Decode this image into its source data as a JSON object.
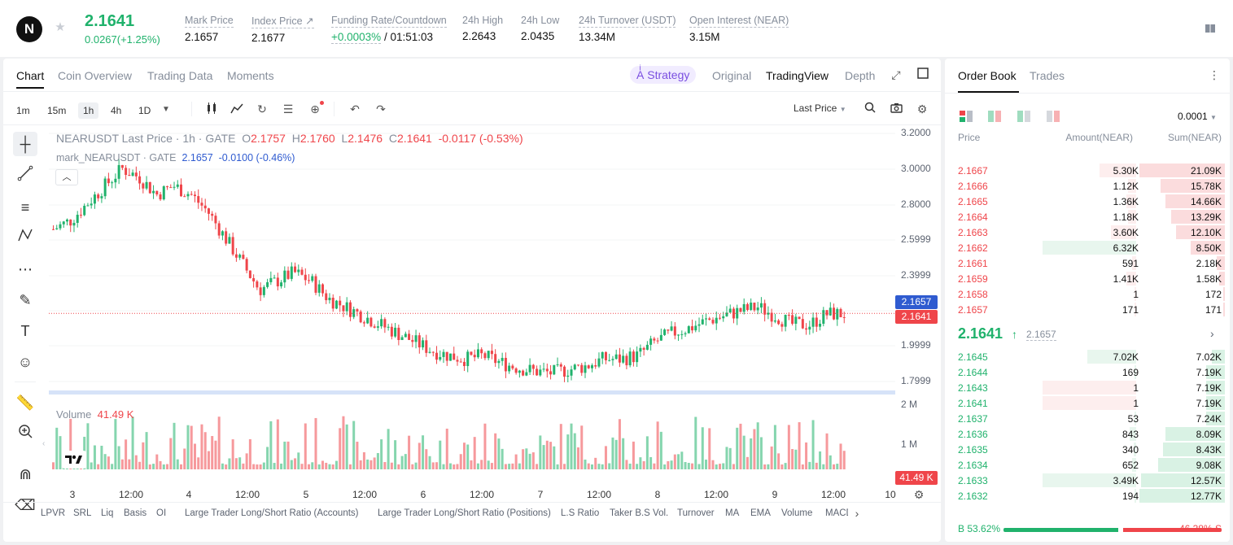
{
  "header": {
    "last_price": "2.1641",
    "change": "0.0267(+1.25%)",
    "mark_label": "Mark Price",
    "mark_value": "2.1657",
    "index_label": "Index Price",
    "index_value": "2.1677",
    "funding_label": "Funding Rate/Countdown",
    "funding_rate": "+0.0003%",
    "funding_countdown": "/ 01:51:03",
    "high_label": "24h High",
    "high_value": "2.2643",
    "low_label": "24h Low",
    "low_value": "2.0435",
    "turnover_label": "24h Turnover (USDT)",
    "turnover_value": "13.34M",
    "oi_label": "Open Interest (NEAR)",
    "oi_value": "3.15M"
  },
  "chart_tabs": [
    "Chart",
    "Coin Overview",
    "Trading Data",
    "Moments"
  ],
  "view_tabs": {
    "strategy": "Strategy",
    "original": "Original",
    "tradingview": "TradingView",
    "depth": "Depth"
  },
  "timeframes": [
    "1m",
    "15m",
    "1h",
    "4h",
    "1D"
  ],
  "price_type": "Last Price",
  "legend": {
    "title": "NEARUSDT Last Price · 1h · GATE",
    "o_label": "O",
    "o": "2.1757",
    "h_label": "H",
    "h": "2.1760",
    "l_label": "L",
    "l": "2.1476",
    "c_label": "C",
    "c": "2.1641",
    "chg": "-0.0117 (-0.53%)",
    "mark_name": "mark_NEARUSDT · GATE",
    "mark_val": "2.1657",
    "mark_chg": "-0.0100 (-0.46%)"
  },
  "volume_legend": {
    "label": "Volume",
    "value": "41.49 K"
  },
  "price_axis": [
    "3.2000",
    "3.0000",
    "2.8000",
    "2.5999",
    "2.3999",
    "1.9999",
    "1.7999"
  ],
  "volume_axis": [
    "2 M",
    "1 M"
  ],
  "price_tags": {
    "mark": "2.1657",
    "last": "2.1641",
    "volume": "41.49 K"
  },
  "time_axis": [
    "3",
    "12:00",
    "4",
    "12:00",
    "5",
    "12:00",
    "6",
    "12:00",
    "7",
    "12:00",
    "8",
    "12:00",
    "9",
    "12:00",
    "10"
  ],
  "indicators": [
    "LPVR",
    "SRL",
    "Liq",
    "Basis",
    "OI",
    "Large Trader Long/Short Ratio (Accounts)",
    "Large Trader Long/Short Ratio (Positions)",
    "L.S Ratio",
    "Taker B.S Vol.",
    "Turnover",
    "MA",
    "EMA",
    "Volume",
    "MACD"
  ],
  "chart_data": {
    "type": "candlestick",
    "series_visible": "NEARUSDT last price, 1h candles, with volume bars",
    "y_range": [
      1.7,
      3.25
    ],
    "approx_close_path": [
      2.65,
      2.7,
      2.8,
      2.9,
      3.0,
      2.95,
      2.85,
      2.9,
      2.85,
      2.75,
      2.6,
      2.45,
      2.3,
      2.35,
      2.4,
      2.35,
      2.25,
      2.2,
      2.15,
      2.1,
      2.05,
      2.0,
      1.95,
      1.92,
      1.9,
      1.92,
      1.88,
      1.85,
      1.83,
      1.82,
      1.84,
      1.86,
      1.9,
      1.9,
      1.92,
      2.0,
      2.05,
      2.08,
      2.12,
      2.15,
      2.18,
      2.2,
      2.15,
      2.1,
      2.1,
      2.16,
      2.16
    ],
    "last_close": 2.1641,
    "mark_price": 2.1657,
    "last_volume": "41.49 K"
  },
  "orderbook": {
    "tabs": [
      "Order Book",
      "Trades"
    ],
    "precision": "0.0001",
    "columns": [
      "Price",
      "Amount(NEAR)",
      "Sum(NEAR)"
    ],
    "asks": [
      {
        "p": "2.1667",
        "a": "5.30K",
        "s": "21.09K",
        "ar": 0.41,
        "sr": 1.0
      },
      {
        "p": "2.1666",
        "a": "1.12K",
        "s": "15.78K",
        "ar": 0.09,
        "sr": 0.75
      },
      {
        "p": "2.1665",
        "a": "1.36K",
        "s": "14.66K",
        "ar": 0.11,
        "sr": 0.7
      },
      {
        "p": "2.1664",
        "a": "1.18K",
        "s": "13.29K",
        "ar": 0.09,
        "sr": 0.63
      },
      {
        "p": "2.1663",
        "a": "3.60K",
        "s": "12.10K",
        "ar": 0.28,
        "sr": 0.57
      },
      {
        "p": "2.1662",
        "a": "6.32K",
        "s": "8.50K",
        "ar": 0.49,
        "sr": 0.4,
        "hl": true
      },
      {
        "p": "2.1661",
        "a": "591",
        "s": "2.18K",
        "ar": 0.05,
        "sr": 0.1
      },
      {
        "p": "2.1659",
        "a": "1.41K",
        "s": "1.58K",
        "ar": 0.11,
        "sr": 0.07
      },
      {
        "p": "2.1658",
        "a": "1",
        "s": "172",
        "ar": 0.0,
        "sr": 0.01
      },
      {
        "p": "2.1657",
        "a": "171",
        "s": "171",
        "ar": 0.01,
        "sr": 0.01
      }
    ],
    "mid": {
      "price": "2.1641",
      "mark": "2.1657"
    },
    "bids": [
      {
        "p": "2.1645",
        "a": "7.02K",
        "s": "7.02K",
        "ar": 0.55,
        "sr": 0.15
      },
      {
        "p": "2.1644",
        "a": "169",
        "s": "7.19K",
        "ar": 0.01,
        "sr": 0.22
      },
      {
        "p": "2.1643",
        "a": "1",
        "s": "7.19K",
        "ar": 0.0,
        "sr": 0.22,
        "hl": true
      },
      {
        "p": "2.1641",
        "a": "1",
        "s": "7.19K",
        "ar": 0.0,
        "sr": 0.22,
        "hl": true
      },
      {
        "p": "2.1637",
        "a": "53",
        "s": "7.24K",
        "ar": 0.0,
        "sr": 0.22
      },
      {
        "p": "2.1636",
        "a": "843",
        "s": "8.09K",
        "ar": 0.07,
        "sr": 0.7
      },
      {
        "p": "2.1635",
        "a": "340",
        "s": "8.43K",
        "ar": 0.03,
        "sr": 0.72
      },
      {
        "p": "2.1634",
        "a": "652",
        "s": "9.08K",
        "ar": 0.05,
        "sr": 0.78
      },
      {
        "p": "2.1633",
        "a": "3.49K",
        "s": "12.57K",
        "ar": 0.27,
        "sr": 0.98,
        "hl": true
      },
      {
        "p": "2.1632",
        "a": "194",
        "s": "12.77K",
        "ar": 0.02,
        "sr": 1.0
      }
    ],
    "buy_label": "B",
    "buy_pct": "53.62%",
    "sell_pct": "46.38%",
    "sell_label": "S",
    "buy_ratio": 0.5362
  },
  "colors": {
    "up": "#20b26c",
    "down": "#ef454a",
    "accent": "#7a4fe0",
    "mark_tag": "#2f5bd0"
  }
}
